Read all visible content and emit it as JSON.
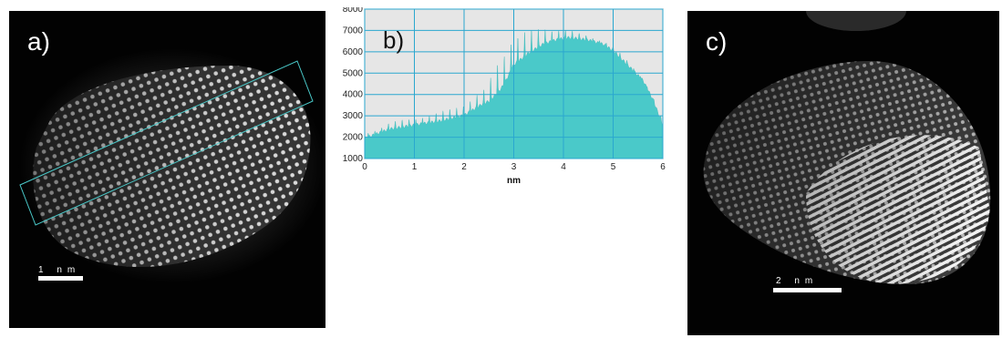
{
  "panels": {
    "a": {
      "label": "a)",
      "scalebar": "1 nm",
      "scalebar_value_nm": 1
    },
    "b": {
      "label": "b)"
    },
    "c": {
      "label": "c)",
      "scalebar": "2 nm",
      "scalebar_value_nm": 2
    }
  },
  "colors": {
    "fill": "#4ac9c9",
    "grid": "#2aa7cf",
    "plot_bg": "#e6e6e6"
  },
  "chart_data": {
    "type": "area",
    "title": "",
    "xlabel": "nm",
    "ylabel": "",
    "xlim": [
      0,
      6
    ],
    "ylim": [
      1000,
      8000
    ],
    "xticks": [
      0,
      1,
      2,
      3,
      4,
      5,
      6
    ],
    "yticks": [
      1000,
      2000,
      3000,
      4000,
      5000,
      6000,
      7000,
      8000
    ],
    "grid": true,
    "envelope": {
      "x": [
        0,
        0.5,
        1.0,
        1.5,
        2.0,
        2.5,
        2.8,
        3.0,
        3.3,
        3.6,
        3.9,
        4.1,
        4.5,
        4.8,
        5.0,
        5.3,
        5.6,
        5.8,
        6.0
      ],
      "y": [
        2000,
        2450,
        2650,
        2850,
        3150,
        3900,
        4800,
        5700,
        6200,
        6550,
        6700,
        6750,
        6600,
        6400,
        6100,
        5400,
        4700,
        3800,
        2600
      ]
    },
    "peak_spacing_nm": 0.137,
    "peak_amplitude": [
      [
        0,
        200
      ],
      [
        1.5,
        350
      ],
      [
        2.4,
        600
      ],
      [
        2.7,
        1400
      ],
      [
        3.2,
        1100
      ],
      [
        3.8,
        500
      ],
      [
        4.3,
        200
      ],
      [
        6.0,
        100
      ]
    ]
  }
}
